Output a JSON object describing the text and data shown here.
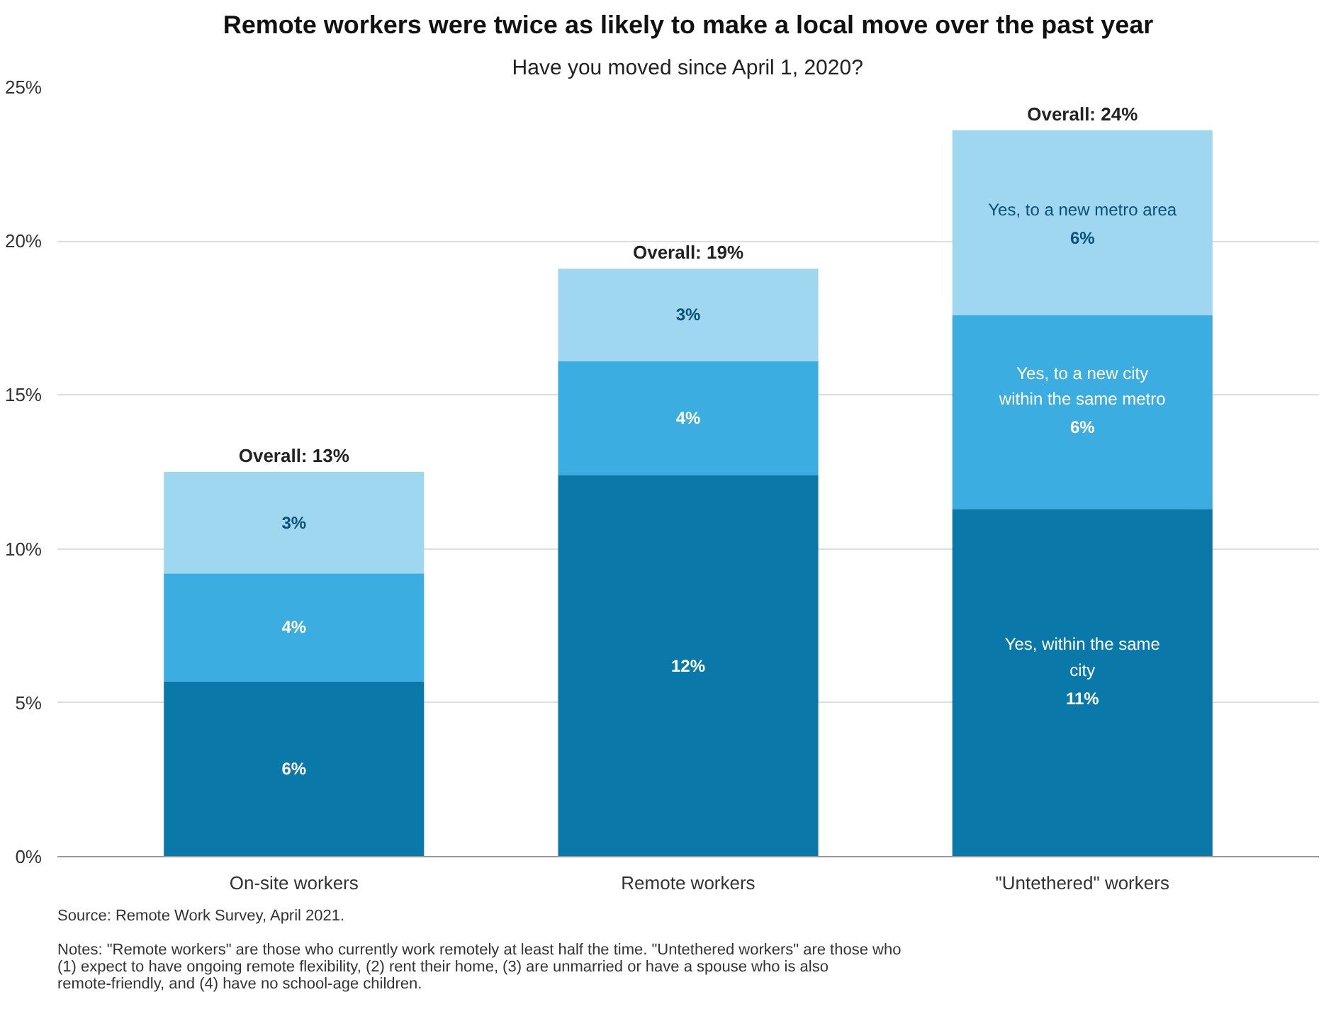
{
  "chart_data": {
    "type": "bar",
    "title": "Remote workers were twice as likely to make a local move over the past year",
    "subtitle": "Have you moved since April 1, 2020?",
    "categories": [
      "On-site workers",
      "Remote workers",
      "\"Untethered\" workers"
    ],
    "stacked": true,
    "series": [
      {
        "name": "Yes, within the same city",
        "color": "#0a78a8",
        "values": [
          5.7,
          12.4,
          11.3
        ],
        "value_labels": [
          "6%",
          "12%",
          "11%"
        ]
      },
      {
        "name": "Yes, to a new city within the same metro",
        "color": "#3cade0",
        "values": [
          3.5,
          3.7,
          6.3
        ],
        "value_labels": [
          "4%",
          "4%",
          "6%"
        ]
      },
      {
        "name": "Yes, to a new metro area",
        "color": "#9fd7f1",
        "values": [
          3.3,
          3.0,
          6.0
        ],
        "value_labels": [
          "3%",
          "3%",
          "6%"
        ]
      }
    ],
    "totals": [
      "Overall: 13%",
      "Overall: 19%",
      "Overall: 24%"
    ],
    "ylim": [
      0,
      25
    ],
    "yticks": [
      {
        "value": 0,
        "label": "0%"
      },
      {
        "value": 5,
        "label": "5%"
      },
      {
        "value": 10,
        "label": "10%"
      },
      {
        "value": 15,
        "label": "15%"
      },
      {
        "value": 20,
        "label": "20%"
      },
      {
        "value": 25,
        "label": "25%"
      }
    ],
    "grid": "y",
    "annotations": [
      "Notes: \"Remote workers\" are those who currently work remotely at least half the time. \"Untethered workers\" are those who (1) expect to have ongoing remote flexibility, (2) rent their home, (3) are unmarried or have a spouse who is also remote-friendly, and (4) have no school-age children.",
      "Source: Remote Work Survey, April 2021."
    ]
  }
}
